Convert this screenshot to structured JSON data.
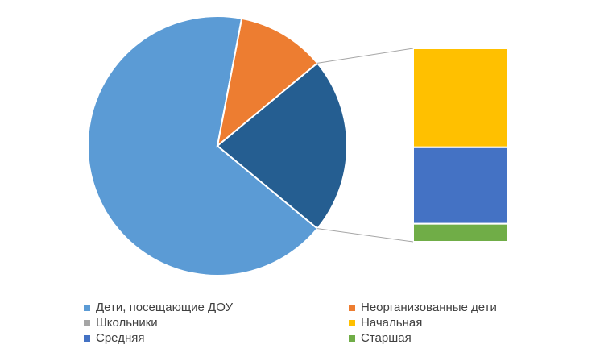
{
  "chart_data": {
    "type": "pie",
    "subtype": "pie-of-bar",
    "title": "",
    "slices": [
      {
        "name": "Дети, посещающие ДОУ",
        "value": 67,
        "color": "#5B9BD5"
      },
      {
        "name": "Неорганизованные дети",
        "value": 11,
        "color": "#ED7D31"
      },
      {
        "name": "Школьники",
        "value": 22,
        "color": "#255E91",
        "legend_color": "#A5A5A5"
      }
    ],
    "breakdown_of": "Школьники",
    "bar_segments": [
      {
        "name": "Начальная",
        "value": 11,
        "color": "#FFC000"
      },
      {
        "name": "Средняя",
        "value": 8.5,
        "color": "#4472C4"
      },
      {
        "name": "Старшая",
        "value": 2,
        "color": "#70AD47"
      }
    ],
    "legend": {
      "position": "bottom",
      "entries": [
        {
          "label": "Дети, посещающие ДОУ",
          "color": "#5B9BD5"
        },
        {
          "label": "Неорганизованные дети",
          "color": "#ED7D31"
        },
        {
          "label": "Школьники",
          "color": "#A5A5A5"
        },
        {
          "label": "Начальная",
          "color": "#FFC000"
        },
        {
          "label": "Средняя",
          "color": "#4472C4"
        },
        {
          "label": "Старшая",
          "color": "#70AD47"
        }
      ]
    }
  }
}
